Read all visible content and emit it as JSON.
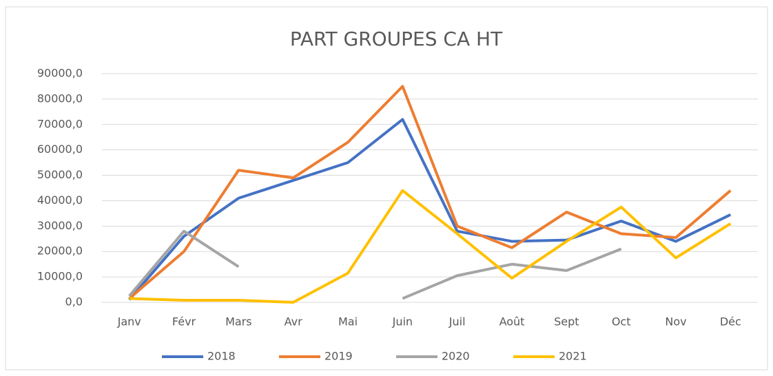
{
  "chart_data": {
    "type": "line",
    "title": "PART GROUPES CA HT",
    "categories": [
      "Janv",
      "Févr",
      "Mars",
      "Avr",
      "Mai",
      "Juin",
      "Juil",
      "Août",
      "Sept",
      "Oct",
      "Nov",
      "Déc"
    ],
    "series": [
      {
        "name": "2018",
        "color": "#4472c4",
        "values": [
          1000,
          26000,
          41000,
          48000,
          55000,
          72000,
          28000,
          24000,
          24500,
          32000,
          24000,
          34500
        ]
      },
      {
        "name": "2019",
        "color": "#ed7d31",
        "values": [
          1500,
          20000,
          52000,
          49000,
          63000,
          85000,
          30000,
          21500,
          35500,
          27000,
          25500,
          44000
        ]
      },
      {
        "name": "2020",
        "color": "#a5a5a5",
        "values": [
          2500,
          28000,
          14000,
          null,
          null,
          1500,
          10500,
          15000,
          12500,
          21000,
          null,
          null
        ]
      },
      {
        "name": "2021",
        "color": "#ffc000",
        "values": [
          1500,
          800,
          800,
          0,
          11500,
          44000,
          27000,
          9500,
          24000,
          37500,
          17500,
          31000
        ]
      }
    ],
    "ylim": [
      0,
      90000
    ],
    "yticks": [
      {
        "value": 0,
        "label": "0,0"
      },
      {
        "value": 10000,
        "label": "10000,0"
      },
      {
        "value": 20000,
        "label": "20000,0"
      },
      {
        "value": 30000,
        "label": "30000,0"
      },
      {
        "value": 40000,
        "label": "40000,0"
      },
      {
        "value": 50000,
        "label": "50000,0"
      },
      {
        "value": 60000,
        "label": "60000,0"
      },
      {
        "value": 70000,
        "label": "70000,0"
      },
      {
        "value": 80000,
        "label": "80000,0"
      },
      {
        "value": 90000,
        "label": "90000,0"
      }
    ],
    "grid": true,
    "legend": "bottom"
  }
}
